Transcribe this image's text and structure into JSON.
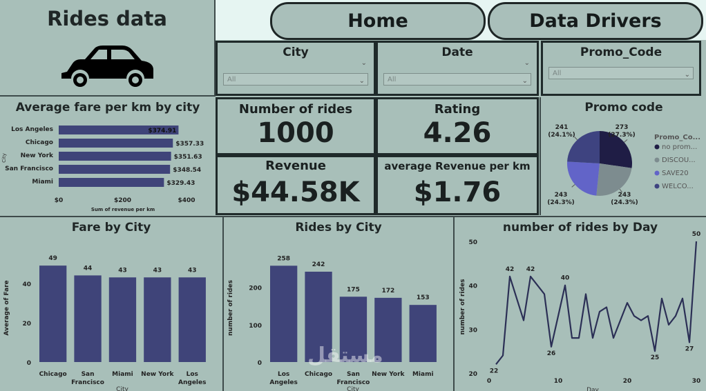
{
  "header": {
    "title": "Rides data"
  },
  "nav": {
    "home": "Home",
    "drivers": "Data Drivers"
  },
  "slicers": [
    {
      "label": "City",
      "value": "All"
    },
    {
      "label": "Date",
      "value": "All"
    },
    {
      "label": "Promo_Code",
      "value": "All"
    }
  ],
  "kpis": {
    "rides_label": "Number of rides",
    "rides_value": "1000",
    "rating_label": "Rating",
    "rating_value": "4.26",
    "revenue_label": "Revenue",
    "revenue_value": "$44.58K",
    "avg_rev_label": "average Revenue per km",
    "avg_rev_value": "$1.76"
  },
  "chart_data": [
    {
      "type": "bar",
      "orientation": "horizontal",
      "title": "Average fare per km by city",
      "categories": [
        "Los Angeles",
        "Chicago",
        "New York",
        "San Francisco",
        "Miami"
      ],
      "values": [
        374.91,
        357.33,
        351.63,
        348.54,
        329.43
      ],
      "labels": [
        "$374.91",
        "$357.33",
        "$351.63",
        "$348.54",
        "$329.43"
      ],
      "xlabel": "Sum of revenue per km",
      "ylabel": "City",
      "xticks": [
        "$0",
        "$200",
        "$400"
      ],
      "xlim": [
        0,
        400
      ]
    },
    {
      "type": "pie",
      "title": "Promo code",
      "legend_title": "Promo_Co...",
      "slices": [
        {
          "name": "no prom...",
          "value": 273,
          "label": "273",
          "pct": "(27.3%)",
          "color": "#1f1d45"
        },
        {
          "name": "DISCOU...",
          "value": 243,
          "label": "243",
          "pct": "(24.3%)",
          "color": "#7d8c8f"
        },
        {
          "name": "SAVE20",
          "value": 243,
          "label": "243",
          "pct": "(24.3%)",
          "color": "#6264c8"
        },
        {
          "name": "WELCO...",
          "value": 241,
          "label": "241",
          "pct": "(24.1%)",
          "color": "#3e4380"
        }
      ]
    },
    {
      "type": "bar",
      "title": "Fare by City",
      "categories": [
        "Chicago",
        "San Francisco",
        "Miami",
        "New York",
        "Los Angeles"
      ],
      "values": [
        49,
        44,
        43,
        43,
        43
      ],
      "xlabel": "City",
      "ylabel": "Average of Fare",
      "yticks": [
        "0",
        "20",
        "40"
      ],
      "ylim": [
        0,
        55
      ]
    },
    {
      "type": "bar",
      "title": "Rides by City",
      "categories": [
        "Los Angeles",
        "Chicago",
        "San Francisco",
        "New York",
        "Miami"
      ],
      "values": [
        258,
        242,
        175,
        172,
        153
      ],
      "xlabel": "City",
      "ylabel": "number of rides",
      "yticks": [
        "0",
        "100",
        "200"
      ],
      "ylim": [
        0,
        290
      ]
    },
    {
      "type": "line",
      "title": "number of rides by Day",
      "x": [
        1,
        2,
        3,
        4,
        5,
        6,
        7,
        8,
        9,
        10,
        11,
        12,
        13,
        14,
        15,
        16,
        17,
        18,
        19,
        20,
        21,
        22,
        23,
        24,
        25,
        26,
        27,
        28,
        29,
        30
      ],
      "y": [
        22,
        24,
        42,
        37,
        32,
        42,
        40,
        38,
        26,
        33,
        40,
        28,
        28,
        38,
        28,
        34,
        35,
        28,
        32,
        36,
        33,
        32,
        33,
        25,
        37,
        31,
        33,
        37,
        27,
        50
      ],
      "point_labels": [
        {
          "x": 1,
          "y": 22,
          "text": "22"
        },
        {
          "x": 3,
          "y": 42,
          "text": "42"
        },
        {
          "x": 6,
          "y": 42,
          "text": "42"
        },
        {
          "x": 9,
          "y": 26,
          "text": "26"
        },
        {
          "x": 11,
          "y": 40,
          "text": "40"
        },
        {
          "x": 24,
          "y": 25,
          "text": "25"
        },
        {
          "x": 29,
          "y": 27,
          "text": "27"
        },
        {
          "x": 30,
          "y": 50,
          "text": "50"
        }
      ],
      "xlabel": "Day",
      "ylabel": "number of rides",
      "xticks": [
        "0",
        "10",
        "20",
        "30"
      ],
      "yticks": [
        "20",
        "30",
        "40",
        "50"
      ],
      "xlim": [
        0,
        30
      ],
      "ylim": [
        20,
        50
      ]
    }
  ],
  "colors": {
    "bar": "#3f4479",
    "bg": "#a8bfb9",
    "line": "#2b2f55"
  },
  "watermark": "مستقل"
}
